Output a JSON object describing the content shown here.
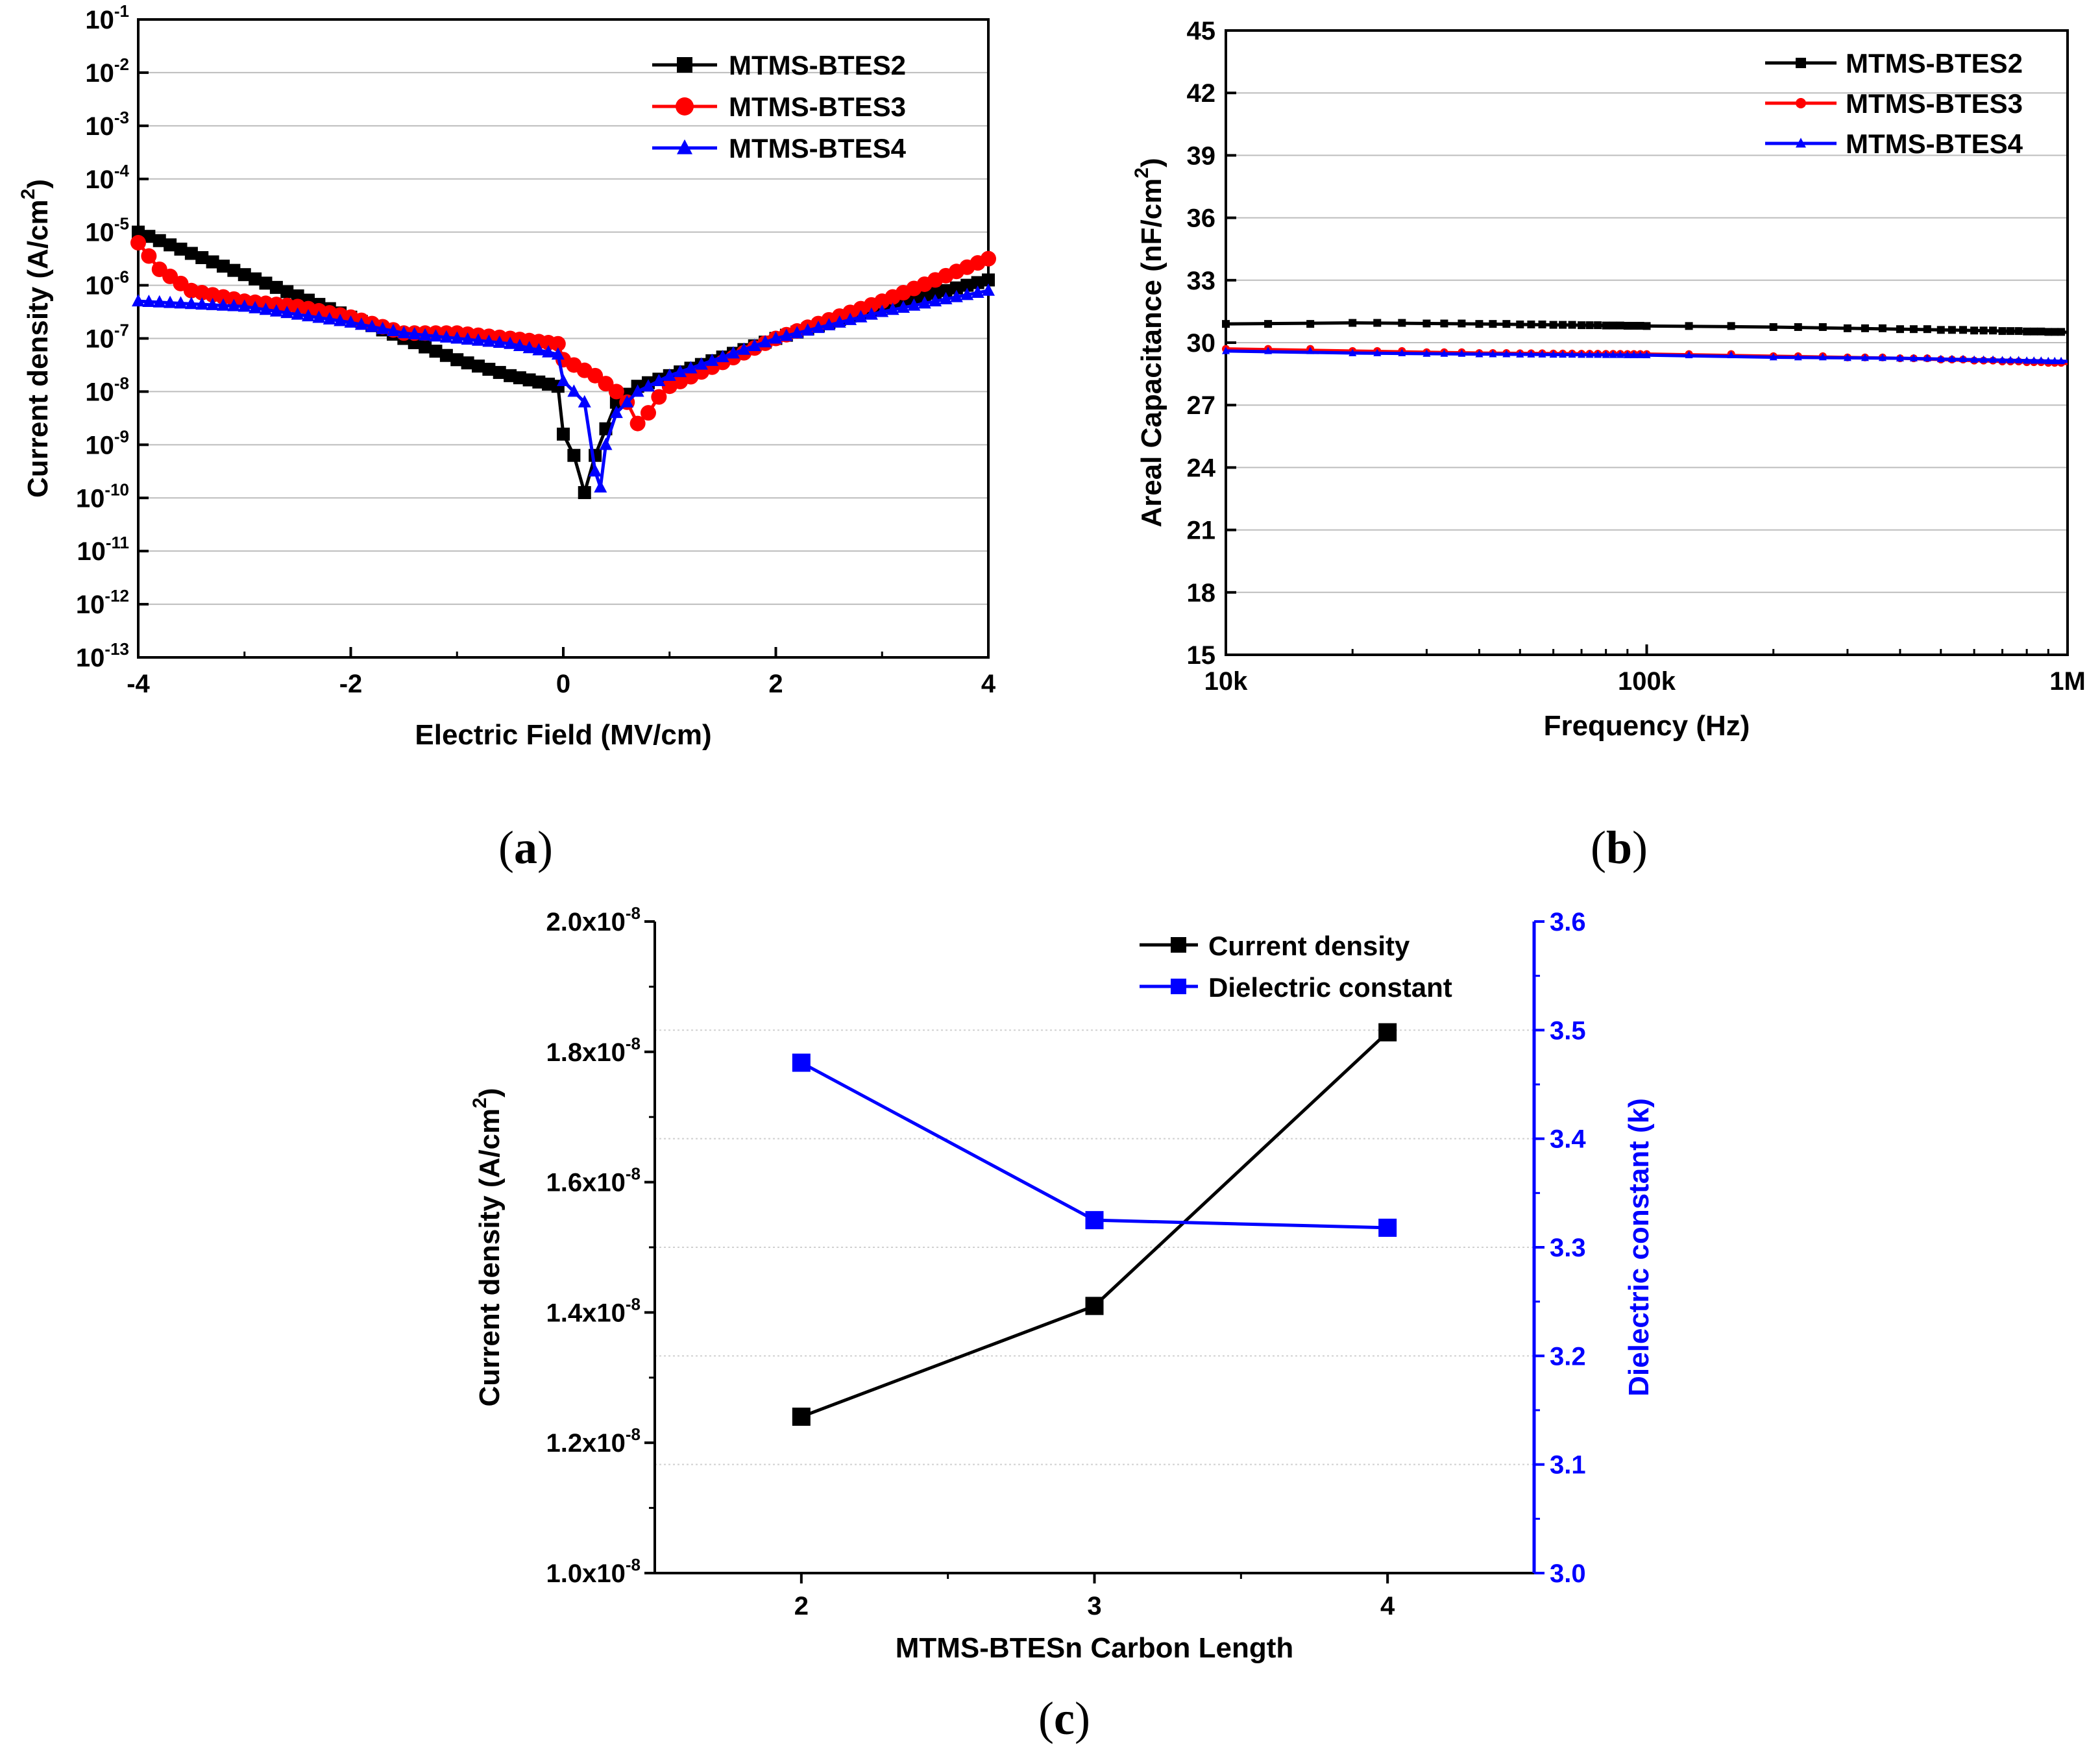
{
  "chart_data": [
    {
      "panel": "a",
      "caption_letter": "a",
      "type": "line",
      "xlabel": "Electric Field (MV/cm)",
      "ylabel": "Current density (A/cm",
      "ylabel_sup": "2",
      "ylabel_close": ")",
      "xlim": [
        -4,
        4
      ],
      "xticks": [
        "-4",
        "-2",
        "0",
        "2",
        "4"
      ],
      "yscale": "log",
      "ylim_exp": [
        -13,
        -1
      ],
      "ytick_base": "10",
      "ytick_exps": [
        "-13",
        "-12",
        "-11",
        "-10",
        "-9",
        "-8",
        "-7",
        "-6",
        "-5",
        "-4",
        "-3",
        "-2",
        "-1"
      ],
      "grid": true,
      "legend_position": "top-right",
      "series": [
        {
          "name": "MTMS-BTES2",
          "color": "#000000",
          "marker": "square",
          "x": [
            -4.0,
            -3.5,
            -3.0,
            -2.5,
            -2.0,
            -1.5,
            -1.0,
            -0.5,
            -0.05,
            0.0,
            0.1,
            0.2,
            0.3,
            0.5,
            0.7,
            1.0,
            2.0,
            3.0,
            4.0
          ],
          "log10y": [
            -5.0,
            -5.4,
            -5.8,
            -6.2,
            -6.6,
            -7.0,
            -7.4,
            -7.7,
            -7.9,
            -8.8,
            -9.2,
            -9.9,
            -9.2,
            -8.2,
            -7.9,
            -7.7,
            -7.0,
            -6.4,
            -5.9
          ]
        },
        {
          "name": "MTMS-BTES3",
          "color": "#ff0000",
          "marker": "circle",
          "x": [
            -4.0,
            -3.8,
            -3.5,
            -3.0,
            -2.5,
            -2.0,
            -1.5,
            -1.0,
            -0.5,
            -0.05,
            0.0,
            0.3,
            0.5,
            0.6,
            0.7,
            0.8,
            0.9,
            1.0,
            2.0,
            3.0,
            4.0
          ],
          "log10y": [
            -5.2,
            -5.7,
            -6.1,
            -6.3,
            -6.4,
            -6.6,
            -6.9,
            -6.9,
            -7.0,
            -7.1,
            -7.4,
            -7.7,
            -8.0,
            -8.2,
            -8.6,
            -8.4,
            -8.1,
            -7.9,
            -7.0,
            -6.3,
            -5.5
          ]
        },
        {
          "name": "MTMS-BTES4",
          "color": "#0000ff",
          "marker": "triangle",
          "x": [
            -4.0,
            -3.0,
            -2.0,
            -1.5,
            -1.0,
            -0.5,
            -0.05,
            0.0,
            0.2,
            0.3,
            0.35,
            0.4,
            0.5,
            0.7,
            1.0,
            2.0,
            3.0,
            4.0
          ],
          "log10y": [
            -6.3,
            -6.4,
            -6.7,
            -6.9,
            -7.0,
            -7.1,
            -7.3,
            -7.8,
            -8.2,
            -9.5,
            -9.8,
            -9.0,
            -8.4,
            -8.0,
            -7.7,
            -7.0,
            -6.5,
            -6.1
          ]
        }
      ]
    },
    {
      "panel": "b",
      "caption_letter": "b",
      "type": "line",
      "xlabel": "Frequency (Hz)",
      "ylabel": "Areal Capacitance (nF/cm",
      "ylabel_sup": "2",
      "ylabel_close": ")",
      "xscale": "log",
      "xlim_log10": [
        4,
        6
      ],
      "xticks": [
        "10k",
        "100k",
        "1M"
      ],
      "ylim": [
        15,
        45
      ],
      "yticks": [
        "15",
        "18",
        "21",
        "24",
        "27",
        "30",
        "33",
        "36",
        "39",
        "42",
        "45"
      ],
      "grid": true,
      "legend_position": "top-right",
      "series": [
        {
          "name": "MTMS-BTES2",
          "color": "#000000",
          "marker": "square",
          "log10x": [
            4.0,
            4.3,
            4.6,
            5.0,
            5.3,
            5.6,
            6.0
          ],
          "y": [
            30.9,
            30.95,
            30.9,
            30.8,
            30.75,
            30.65,
            30.5
          ]
        },
        {
          "name": "MTMS-BTES3",
          "color": "#ff0000",
          "marker": "circle",
          "log10x": [
            4.0,
            4.3,
            4.6,
            5.0,
            5.3,
            5.6,
            6.0
          ],
          "y": [
            29.7,
            29.6,
            29.5,
            29.45,
            29.35,
            29.25,
            29.0
          ]
        },
        {
          "name": "MTMS-BTES4",
          "color": "#0000ff",
          "marker": "triangle",
          "log10x": [
            4.0,
            4.3,
            4.6,
            5.0,
            5.3,
            5.6,
            6.0
          ],
          "y": [
            29.6,
            29.5,
            29.45,
            29.4,
            29.3,
            29.25,
            29.1
          ]
        }
      ]
    },
    {
      "panel": "c",
      "caption_letter": "c",
      "type": "line",
      "xlabel": "MTMS-BTESn Carbon Length",
      "xlim": [
        1.5,
        4.5
      ],
      "xticks": [
        "2",
        "3",
        "4"
      ],
      "ylabel_left": "Current density (A/cm",
      "ylabel_left_sup": "2",
      "ylabel_left_close": ")",
      "ylim_left": [
        1e-08,
        2e-08
      ],
      "yticks_left": [
        {
          "mant": "1.0x10",
          "exp": "-8"
        },
        {
          "mant": "1.2x10",
          "exp": "-8"
        },
        {
          "mant": "1.4x10",
          "exp": "-8"
        },
        {
          "mant": "1.6x10",
          "exp": "-8"
        },
        {
          "mant": "1.8x10",
          "exp": "-8"
        },
        {
          "mant": "2.0x10",
          "exp": "-8"
        }
      ],
      "ylabel_right": "Dielectric constant (k)",
      "ylim_right": [
        3.0,
        3.6
      ],
      "yticks_right": [
        "3.0",
        "3.1",
        "3.2",
        "3.3",
        "3.4",
        "3.5",
        "3.6"
      ],
      "legend_position": "top-right",
      "series": [
        {
          "name": "Current density",
          "color": "#000000",
          "axis": "left",
          "x": [
            2,
            3,
            4
          ],
          "y": [
            1.24e-08,
            1.41e-08,
            1.83e-08
          ]
        },
        {
          "name": "Dielectric constant",
          "color": "#0000ff",
          "axis": "right",
          "x": [
            2,
            3,
            4
          ],
          "y": [
            3.47,
            3.325,
            3.318
          ]
        }
      ]
    }
  ]
}
